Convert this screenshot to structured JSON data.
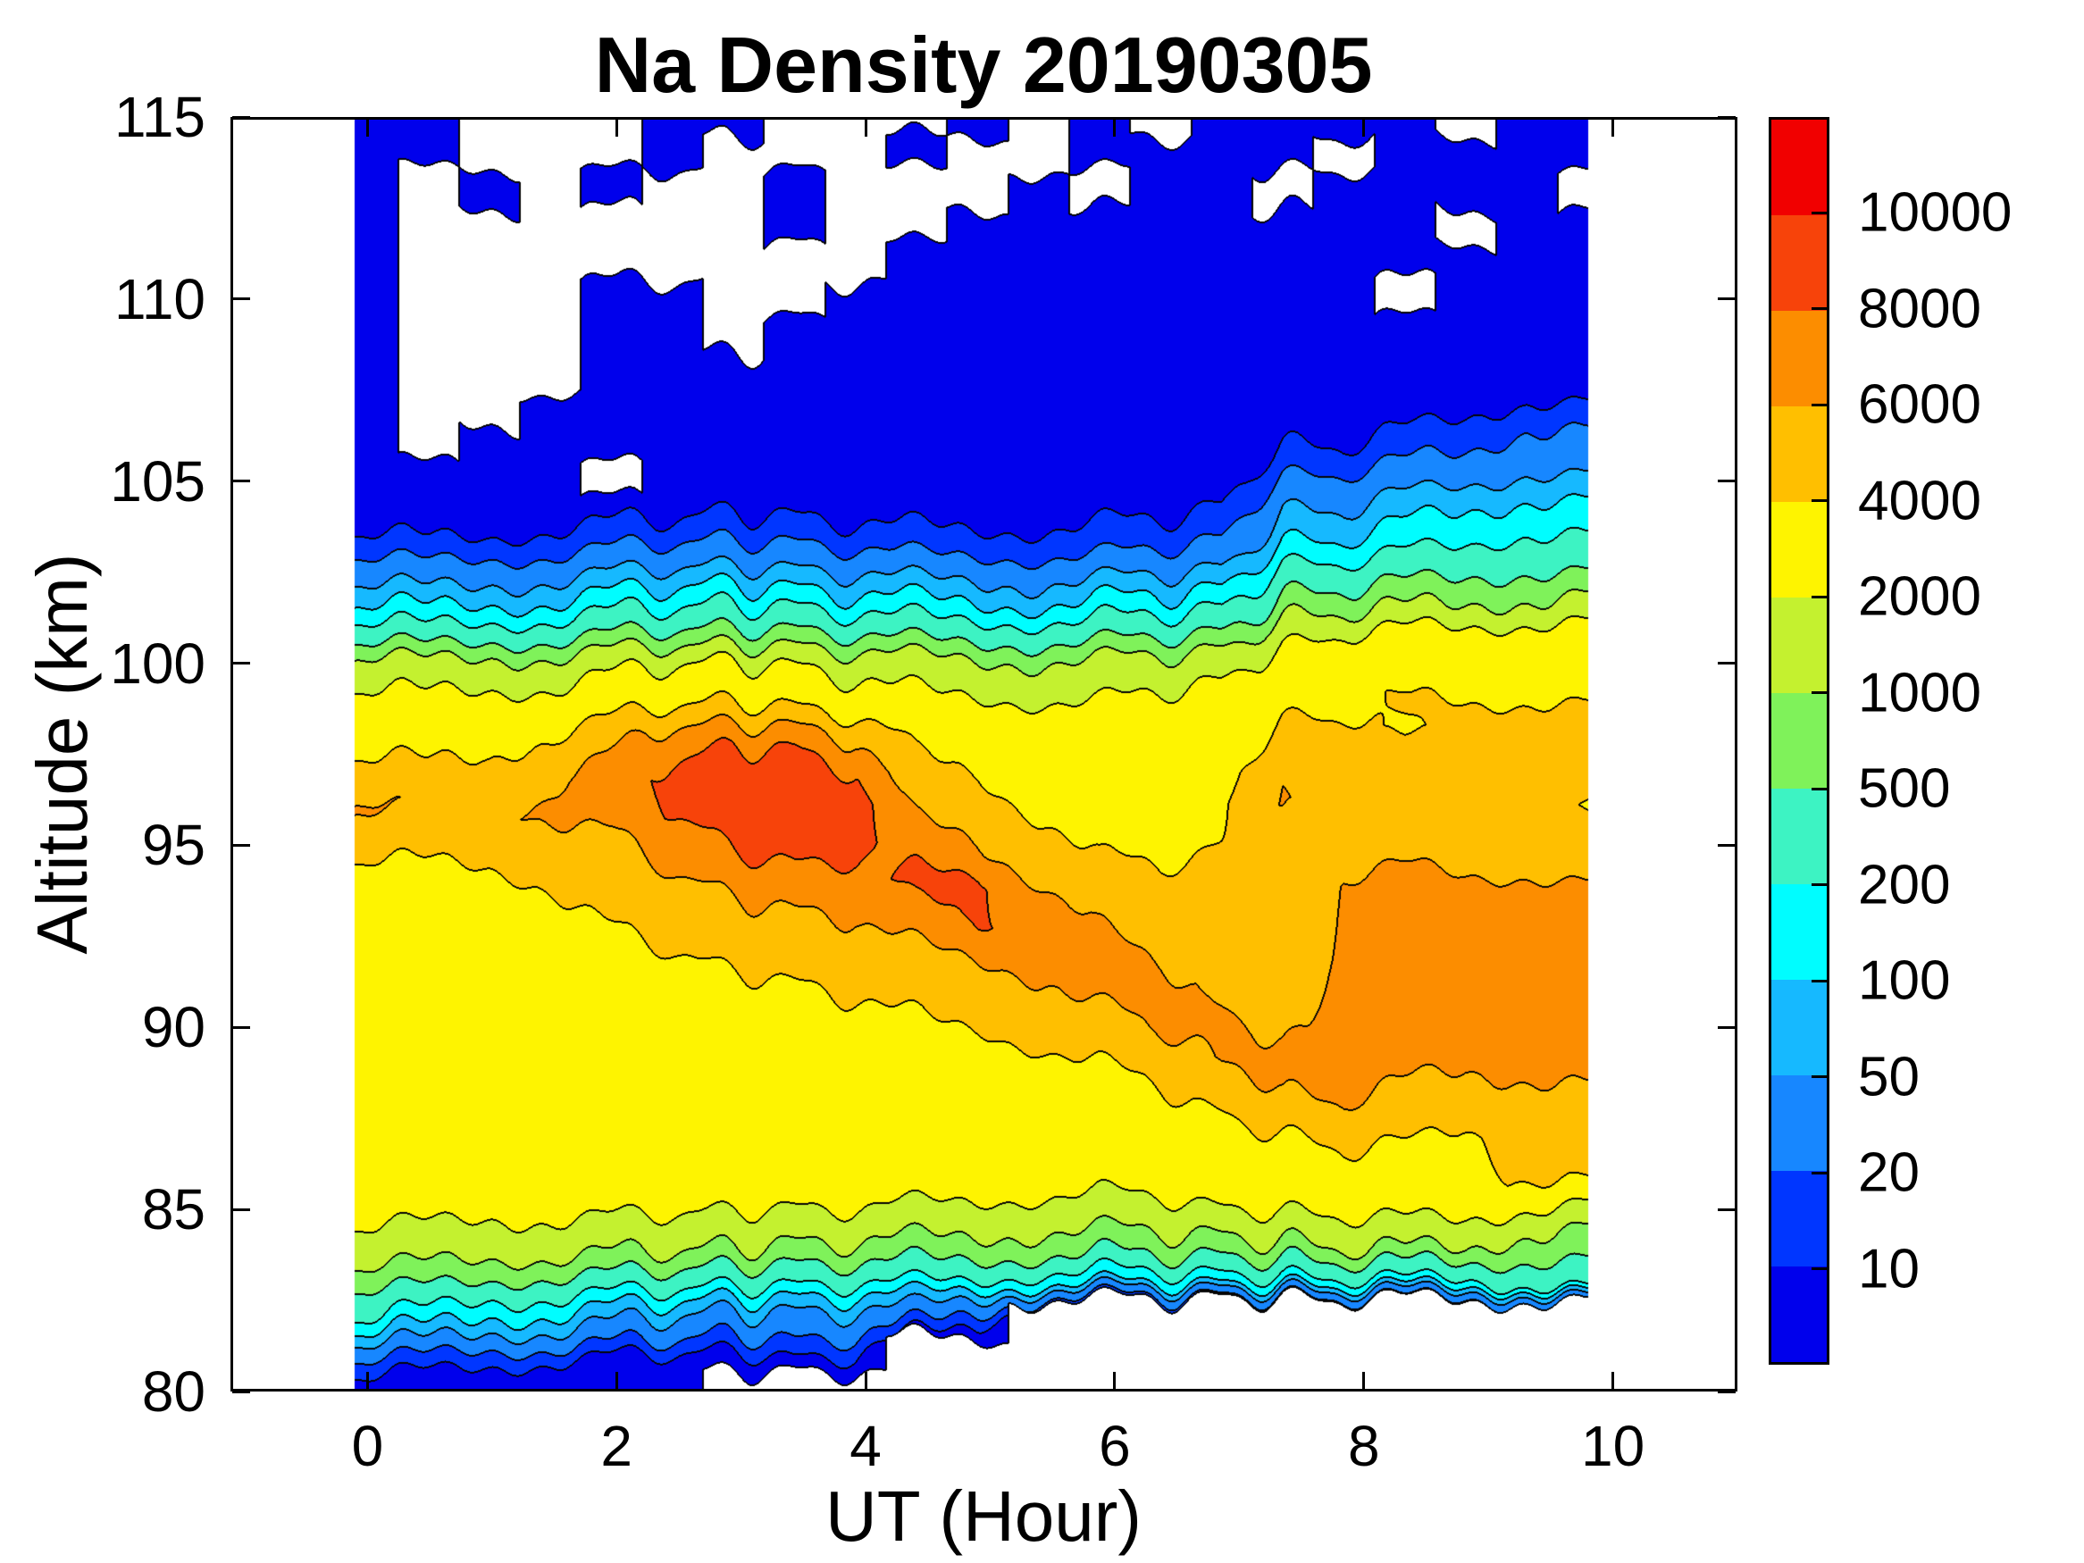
{
  "title": "Na Density 20190305",
  "axes": {
    "xlabel": "UT (Hour)",
    "ylabel": "Altitude (km)",
    "xlim": [
      -1.1,
      11
    ],
    "ylim": [
      80,
      115
    ],
    "x_ticks": [
      0,
      2,
      4,
      6,
      8,
      10
    ],
    "y_ticks": [
      80,
      85,
      90,
      95,
      100,
      105,
      110,
      115
    ]
  },
  "colorbar": {
    "tick_labels": [
      "10",
      "20",
      "50",
      "100",
      "200",
      "500",
      "1000",
      "2000",
      "4000",
      "6000",
      "8000",
      "10000"
    ]
  },
  "chart_data": {
    "type": "heatmap",
    "title": "Na Density 20190305",
    "xlabel": "UT (Hour)",
    "ylabel": "Altitude (km)",
    "legend_position": "right-colorbar",
    "grid": false,
    "levels": [
      10,
      20,
      50,
      100,
      200,
      500,
      1000,
      2000,
      4000,
      6000,
      8000,
      10000
    ],
    "level_colors": [
      "#0000EC",
      "#0036FF",
      "#1787FF",
      "#16B9FF",
      "#00FDFF",
      "#3DF3C3",
      "#7FF25A",
      "#C4F12F",
      "#FEF400",
      "#FFBF00",
      "#FC8D00",
      "#F7430A",
      "#F10000"
    ],
    "no_data_color": "#FFFFFF",
    "contour_line_color": "#000000",
    "x_hours": [
      0,
      0.49,
      0.98,
      1.47,
      1.96,
      2.45,
      2.94,
      3.43,
      3.92,
      4.41,
      4.9,
      5.39,
      5.88,
      6.37,
      6.86,
      7.35,
      7.84,
      8.33,
      8.82,
      9.31,
      9.8
    ],
    "y_altitude_km": [
      80,
      81,
      82,
      83,
      84,
      85,
      86,
      87,
      88,
      89,
      90,
      91,
      92,
      93,
      94,
      95,
      96,
      97,
      98,
      99,
      100,
      101,
      102,
      103,
      104,
      105,
      106,
      107,
      108,
      109,
      110,
      111,
      112,
      113,
      114,
      115
    ],
    "values": [
      [
        6,
        5,
        5,
        4,
        4,
        4,
        null,
        null,
        null,
        null,
        null,
        null,
        null,
        null,
        null,
        null,
        null,
        null,
        null,
        null,
        null
      ],
      [
        25,
        20,
        15,
        12,
        10,
        9,
        8,
        12,
        10,
        null,
        null,
        null,
        null,
        null,
        null,
        null,
        null,
        null,
        null,
        null,
        null
      ],
      [
        200,
        150,
        100,
        80,
        60,
        45,
        35,
        40,
        35,
        30,
        14,
        null,
        null,
        null,
        null,
        null,
        null,
        null,
        null,
        null,
        null
      ],
      [
        700,
        600,
        500,
        400,
        350,
        300,
        250,
        250,
        220,
        200,
        180,
        120,
        100,
        110,
        130,
        150,
        160,
        170,
        160,
        250,
        300
      ],
      [
        1600,
        1500,
        1400,
        1300,
        1200,
        1100,
        1000,
        950,
        900,
        850,
        800,
        700,
        650,
        700,
        800,
        900,
        1000,
        1100,
        1000,
        700,
        600
      ],
      [
        2600,
        2500,
        2400,
        2400,
        2300,
        2200,
        2100,
        2000,
        2000,
        1900,
        1900,
        1800,
        1700,
        1800,
        2000,
        2200,
        2400,
        2600,
        2600,
        2000,
        1600
      ],
      [
        3000,
        2900,
        2800,
        2800,
        2700,
        2700,
        2600,
        2600,
        2500,
        2500,
        2400,
        2400,
        2300,
        2400,
        2600,
        3000,
        3400,
        3400,
        3600,
        4200,
        4200
      ],
      [
        3200,
        3100,
        3000,
        3000,
        2900,
        2900,
        2800,
        2800,
        2800,
        2800,
        2800,
        2800,
        2800,
        3000,
        3400,
        4000,
        4400,
        4200,
        3800,
        4600,
        4800
      ],
      [
        3300,
        3200,
        3100,
        3100,
        3000,
        3000,
        3000,
        3000,
        3000,
        3100,
        3100,
        3200,
        3300,
        3600,
        4400,
        5800,
        6000,
        5600,
        5200,
        5400,
        5600
      ],
      [
        3400,
        3300,
        3200,
        3200,
        3100,
        3100,
        3100,
        3200,
        3300,
        3400,
        3500,
        3700,
        4000,
        4600,
        6200,
        6600,
        6800,
        6400,
        6200,
        6400,
        6400
      ],
      [
        3500,
        3400,
        3300,
        3300,
        3200,
        3300,
        3400,
        3500,
        3600,
        3800,
        4000,
        4400,
        5200,
        6200,
        6400,
        5600,
        6600,
        6600,
        6800,
        6800,
        6800
      ],
      [
        3500,
        3400,
        3300,
        3400,
        3300,
        3500,
        3700,
        3900,
        4100,
        4400,
        4800,
        5600,
        6600,
        6600,
        5600,
        5200,
        6400,
        6600,
        7000,
        6800,
        6800
      ],
      [
        3600,
        3500,
        3400,
        3500,
        3600,
        3900,
        4300,
        4600,
        4900,
        5400,
        6200,
        7000,
        6800,
        5800,
        4800,
        4800,
        6300,
        6400,
        6800,
        6600,
        6600
      ],
      [
        3600,
        3500,
        3500,
        3700,
        4100,
        4700,
        5400,
        5800,
        6000,
        7400,
        8200,
        7400,
        5800,
        4800,
        4400,
        4600,
        6200,
        6600,
        6600,
        6400,
        6400
      ],
      [
        3700,
        3600,
        3700,
        4100,
        4600,
        5600,
        6600,
        7200,
        7000,
        8800,
        8400,
        6000,
        4600,
        4200,
        4200,
        4400,
        6100,
        6400,
        6200,
        6200,
        6000
      ],
      [
        4200,
        4300,
        4500,
        5200,
        5600,
        7000,
        8200,
        8800,
        8600,
        7000,
        6200,
        4600,
        3800,
        3800,
        4000,
        4600,
        5400,
        5600,
        5400,
        5200,
        5000
      ],
      [
        6300,
        5800,
        5600,
        6400,
        6800,
        8200,
        9200,
        9800,
        9200,
        5600,
        4800,
        3800,
        3200,
        3400,
        3800,
        6200,
        4800,
        5000,
        4800,
        4600,
        3900
      ],
      [
        4500,
        4300,
        4400,
        5600,
        7000,
        8600,
        9400,
        9600,
        8200,
        4600,
        4000,
        3000,
        2600,
        3000,
        3400,
        5800,
        4600,
        4600,
        4400,
        4400,
        4400
      ],
      [
        3400,
        3300,
        3400,
        3900,
        5200,
        6800,
        7400,
        7000,
        5600,
        3400,
        3000,
        2400,
        2200,
        2600,
        3000,
        4400,
        4200,
        3900,
        4200,
        4200,
        4200
      ],
      [
        2500,
        2400,
        2500,
        2700,
        3200,
        3800,
        4000,
        3600,
        3000,
        2400,
        2200,
        2000,
        2000,
        2400,
        2600,
        3600,
        3800,
        4100,
        4000,
        4000,
        4000
      ],
      [
        1200,
        1000,
        1100,
        1300,
        1600,
        1900,
        2000,
        1800,
        1500,
        1200,
        1100,
        1000,
        1100,
        1300,
        1500,
        2600,
        3000,
        3200,
        3400,
        3400,
        3600
      ],
      [
        260,
        220,
        240,
        300,
        400,
        480,
        500,
        460,
        380,
        300,
        280,
        260,
        300,
        360,
        420,
        1400,
        1800,
        2000,
        2200,
        2400,
        2600
      ],
      [
        60,
        50,
        55,
        70,
        90,
        110,
        120,
        100,
        85,
        70,
        65,
        60,
        70,
        85,
        100,
        400,
        520,
        600,
        700,
        800,
        900
      ],
      [
        18,
        15,
        16,
        20,
        25,
        30,
        32,
        28,
        24,
        20,
        19,
        18,
        20,
        24,
        30,
        140,
        150,
        220,
        260,
        300,
        300
      ],
      [
        7,
        6,
        6,
        8,
        9,
        10,
        11,
        10,
        9,
        8,
        8,
        8,
        9,
        10,
        12,
        55,
        60,
        90,
        120,
        160,
        160
      ],
      [
        4,
        3,
        3,
        4,
        null,
        5,
        5,
        5,
        4,
        4,
        4,
        4,
        4,
        5,
        6,
        22,
        24,
        35,
        45,
        60,
        60
      ],
      [
        3,
        null,
        3,
        3,
        4,
        4,
        4,
        4,
        4,
        3,
        3,
        3,
        4,
        4,
        4,
        10,
        10,
        14,
        18,
        30,
        30
      ],
      [
        3,
        null,
        null,
        3,
        3,
        3,
        3,
        3,
        3,
        3,
        3,
        3,
        3,
        3,
        4,
        5,
        5,
        6,
        8,
        12,
        12
      ],
      [
        3,
        null,
        null,
        null,
        3,
        3,
        3,
        3,
        3,
        3,
        3,
        3,
        3,
        3,
        3,
        4,
        4,
        4,
        4,
        5,
        5
      ],
      [
        3,
        null,
        null,
        null,
        3,
        3,
        null,
        3,
        3,
        3,
        3,
        3,
        3,
        3,
        3,
        3,
        3,
        3,
        3,
        4,
        4
      ],
      [
        3,
        null,
        null,
        null,
        3,
        3,
        null,
        null,
        3,
        3,
        3,
        3,
        3,
        3,
        3,
        3,
        3,
        null,
        3,
        3,
        3
      ],
      [
        3,
        null,
        null,
        null,
        null,
        null,
        null,
        null,
        null,
        3,
        3,
        3,
        3,
        3,
        3,
        3,
        3,
        3,
        3,
        3,
        3
      ],
      [
        3,
        null,
        null,
        null,
        null,
        null,
        null,
        3,
        null,
        null,
        3,
        3,
        3,
        3,
        3,
        3,
        3,
        3,
        null,
        3,
        3
      ],
      [
        3,
        null,
        3,
        null,
        3,
        null,
        null,
        3,
        null,
        null,
        null,
        3,
        null,
        3,
        3,
        null,
        3,
        3,
        3,
        3,
        null
      ],
      [
        3,
        3,
        null,
        null,
        null,
        3,
        null,
        null,
        null,
        3,
        null,
        null,
        3,
        3,
        3,
        3,
        null,
        3,
        3,
        3,
        3
      ],
      [
        3,
        3,
        null,
        null,
        null,
        3,
        3,
        null,
        null,
        null,
        3,
        null,
        3,
        null,
        3,
        3,
        3,
        3,
        null,
        3,
        3
      ]
    ]
  }
}
